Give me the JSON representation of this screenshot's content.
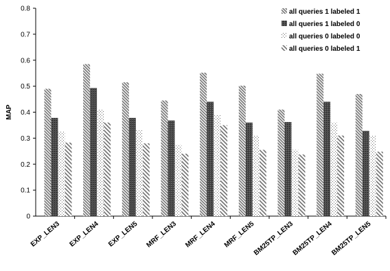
{
  "chart_data": {
    "type": "bar",
    "title": "",
    "xlabel": "",
    "ylabel": "MAP",
    "ylim": [
      0,
      0.8
    ],
    "yticks": [
      "0",
      "0.1",
      "0.2",
      "0.3",
      "0.4",
      "0.5",
      "0.6",
      "0.7",
      "0.8"
    ],
    "grid": false,
    "legend_position": "top-right",
    "categories": [
      "EXP_LEN3",
      "EXP_LEN4",
      "EXP_LEN5",
      "MRF_LEN3",
      "MRF_LEN4",
      "MRF_LEN5",
      "BM25TP_LEN3",
      "BM25TP_LEN4",
      "BM25TP_LEN5"
    ],
    "series": [
      {
        "name": "all queries 1 labeled 1",
        "pattern": "dense-diagonal-hatch",
        "values": [
          0.49,
          0.585,
          0.515,
          0.445,
          0.552,
          0.502,
          0.41,
          0.548,
          0.47
        ]
      },
      {
        "name": "all queries 1 labeled 0",
        "pattern": "dark-solid",
        "values": [
          0.378,
          0.493,
          0.378,
          0.368,
          0.44,
          0.36,
          0.362,
          0.44,
          0.328
        ]
      },
      {
        "name": "all queries 0 labeled 0",
        "pattern": "sparse-dots",
        "values": [
          0.325,
          0.41,
          0.33,
          0.275,
          0.39,
          0.31,
          0.255,
          0.36,
          0.31
        ]
      },
      {
        "name": "all queries 0 labeled 1",
        "pattern": "wide-diagonal-hatch",
        "values": [
          0.283,
          0.36,
          0.28,
          0.24,
          0.35,
          0.255,
          0.237,
          0.31,
          0.248
        ]
      }
    ]
  }
}
